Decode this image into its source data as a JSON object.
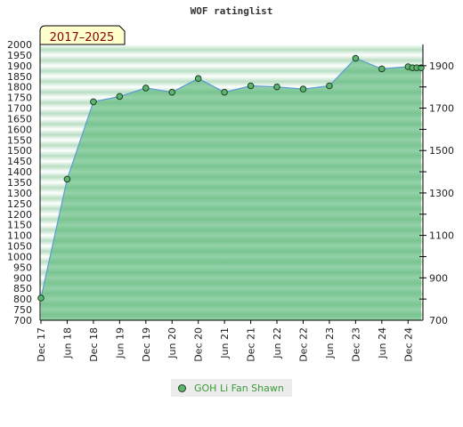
{
  "chart_data": {
    "type": "area",
    "title": "WOF ratinglist",
    "period_label": "2017–2025",
    "x_tick_labels": [
      "Dec 17",
      "Jun 18",
      "Dec 18",
      "Jun 19",
      "Dec 19",
      "Jun 20",
      "Dec 20",
      "Jun 21",
      "Dec 21",
      "Jun 22",
      "Dec 22",
      "Jun 23",
      "Dec 23",
      "Jun 24",
      "Dec 24"
    ],
    "y_left_ticks": [
      700,
      750,
      800,
      850,
      900,
      950,
      1000,
      1050,
      1100,
      1150,
      1200,
      1250,
      1300,
      1350,
      1400,
      1450,
      1500,
      1550,
      1600,
      1650,
      1700,
      1750,
      1800,
      1850,
      1900,
      1950,
      2000
    ],
    "y_right_ticks": [
      700,
      900,
      1100,
      1300,
      1500,
      1700,
      1900
    ],
    "ylim": [
      700,
      2000
    ],
    "xlim": [
      "Dec 17",
      "Mar 25"
    ],
    "grid": true,
    "series": [
      {
        "name": "GOH Li Fan Shawn",
        "color": "#5bb56e",
        "points": [
          {
            "x": "Dec 17",
            "y": 805
          },
          {
            "x": "Jun 18",
            "y": 1365
          },
          {
            "x": "Dec 18",
            "y": 1730
          },
          {
            "x": "Jun 19",
            "y": 1755
          },
          {
            "x": "Dec 19",
            "y": 1795
          },
          {
            "x": "Jun 20",
            "y": 1775
          },
          {
            "x": "Dec 20",
            "y": 1840
          },
          {
            "x": "Jun 21",
            "y": 1775
          },
          {
            "x": "Dec 21",
            "y": 1805
          },
          {
            "x": "Jun 22",
            "y": 1800
          },
          {
            "x": "Dec 22",
            "y": 1790
          },
          {
            "x": "Jun 23",
            "y": 1805
          },
          {
            "x": "Dec 23",
            "y": 1935
          },
          {
            "x": "Jun 24",
            "y": 1885
          },
          {
            "x": "Dec 24",
            "y": 1895
          },
          {
            "x": "Jan 25",
            "y": 1890
          },
          {
            "x": "Feb 25",
            "y": 1890
          },
          {
            "x": "Mar 25",
            "y": 1890
          }
        ]
      }
    ],
    "legend_position": "bottom-center"
  }
}
